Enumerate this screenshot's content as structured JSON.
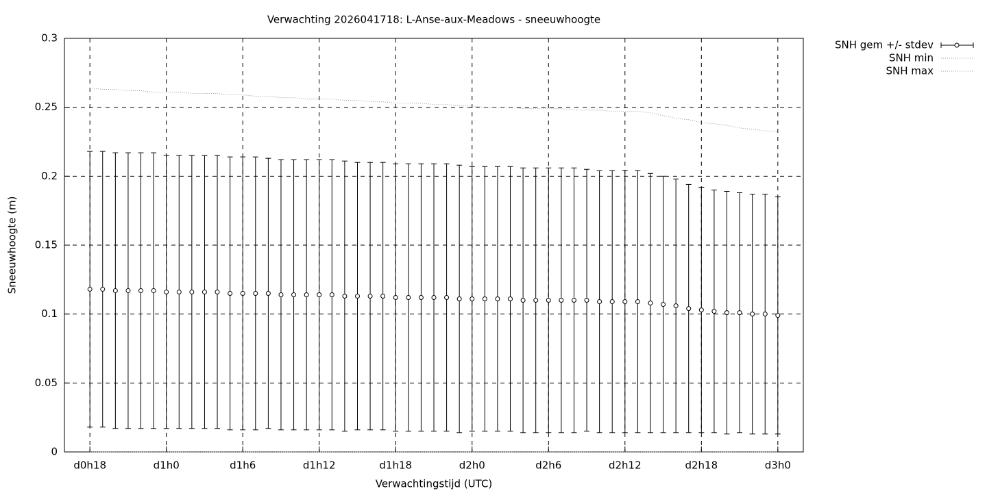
{
  "chart_data": {
    "type": "errorbar",
    "title": "Verwachting 2026041718: L-Anse-aux-Meadows - sneeuwhoogte",
    "xlabel": "Verwachtingstijd (UTC)",
    "ylabel": "Sneeuwhoogte (m)",
    "x": [
      18,
      19,
      20,
      21,
      22,
      23,
      24,
      25,
      26,
      27,
      28,
      29,
      30,
      31,
      32,
      33,
      34,
      35,
      36,
      37,
      38,
      39,
      40,
      41,
      42,
      43,
      44,
      45,
      46,
      47,
      48,
      49,
      50,
      51,
      52,
      53,
      54,
      55,
      56,
      57,
      58,
      59,
      60,
      61,
      62,
      63,
      64,
      65,
      66,
      67,
      68,
      69,
      70,
      71,
      72
    ],
    "series": [
      {
        "name": "SNH gem +/- stdev",
        "color": "#000000",
        "style": "errorbar",
        "values": [
          0.118,
          0.118,
          0.117,
          0.117,
          0.117,
          0.117,
          0.116,
          0.116,
          0.116,
          0.116,
          0.116,
          0.115,
          0.115,
          0.115,
          0.115,
          0.114,
          0.114,
          0.114,
          0.114,
          0.114,
          0.113,
          0.113,
          0.113,
          0.113,
          0.112,
          0.112,
          0.112,
          0.112,
          0.112,
          0.111,
          0.111,
          0.111,
          0.111,
          0.111,
          0.11,
          0.11,
          0.11,
          0.11,
          0.11,
          0.11,
          0.109,
          0.109,
          0.109,
          0.109,
          0.108,
          0.107,
          0.106,
          0.104,
          0.103,
          0.102,
          0.101,
          0.101,
          0.1,
          0.1,
          0.099
        ],
        "errors": [
          0.1,
          0.1,
          0.1,
          0.1,
          0.1,
          0.1,
          0.099,
          0.099,
          0.099,
          0.099,
          0.099,
          0.099,
          0.099,
          0.099,
          0.098,
          0.098,
          0.098,
          0.098,
          0.098,
          0.098,
          0.098,
          0.097,
          0.097,
          0.097,
          0.097,
          0.097,
          0.097,
          0.097,
          0.097,
          0.097,
          0.096,
          0.096,
          0.096,
          0.096,
          0.096,
          0.096,
          0.096,
          0.096,
          0.096,
          0.095,
          0.095,
          0.095,
          0.095,
          0.095,
          0.094,
          0.093,
          0.092,
          0.09,
          0.089,
          0.088,
          0.088,
          0.087,
          0.087,
          0.087,
          0.086
        ]
      },
      {
        "name": "SNH min",
        "color": "#999999",
        "style": "dotted",
        "values": [
          0,
          0,
          0,
          0,
          0,
          0,
          0,
          0,
          0,
          0,
          0,
          0,
          0,
          0,
          0,
          0,
          0,
          0,
          0,
          0,
          0,
          0,
          0,
          0,
          0,
          0,
          0,
          0,
          0,
          0,
          0,
          0,
          0,
          0,
          0,
          0,
          0,
          0,
          0,
          0,
          0,
          0,
          0,
          0,
          0,
          0,
          0,
          0,
          0,
          0,
          0,
          0,
          0,
          0,
          0
        ]
      },
      {
        "name": "SNH max",
        "color": "#999999",
        "style": "dotted",
        "values": [
          0.264,
          0.263,
          0.263,
          0.262,
          0.262,
          0.261,
          0.261,
          0.261,
          0.26,
          0.26,
          0.26,
          0.259,
          0.259,
          0.258,
          0.258,
          0.257,
          0.257,
          0.256,
          0.256,
          0.256,
          0.255,
          0.255,
          0.254,
          0.254,
          0.253,
          0.253,
          0.253,
          0.252,
          0.252,
          0.251,
          0.251,
          0.25,
          0.25,
          0.25,
          0.249,
          0.249,
          0.249,
          0.249,
          0.248,
          0.248,
          0.248,
          0.247,
          0.247,
          0.247,
          0.246,
          0.244,
          0.242,
          0.241,
          0.239,
          0.238,
          0.237,
          0.235,
          0.234,
          0.233,
          0.232
        ]
      }
    ],
    "xlim": [
      16,
      74
    ],
    "xticks": [
      {
        "value": 18,
        "label": "d0h18"
      },
      {
        "value": 24,
        "label": "d1h0"
      },
      {
        "value": 30,
        "label": "d1h6"
      },
      {
        "value": 36,
        "label": "d1h12"
      },
      {
        "value": 42,
        "label": "d1h18"
      },
      {
        "value": 48,
        "label": "d2h0"
      },
      {
        "value": 54,
        "label": "d2h6"
      },
      {
        "value": 60,
        "label": "d2h12"
      },
      {
        "value": 66,
        "label": "d2h18"
      },
      {
        "value": 72,
        "label": "d3h0"
      }
    ],
    "ylim": [
      0,
      0.3
    ],
    "yticks": [
      0,
      0.05,
      0.1,
      0.15,
      0.2,
      0.25,
      0.3
    ],
    "grid": true,
    "legend": "outside-top-right"
  }
}
